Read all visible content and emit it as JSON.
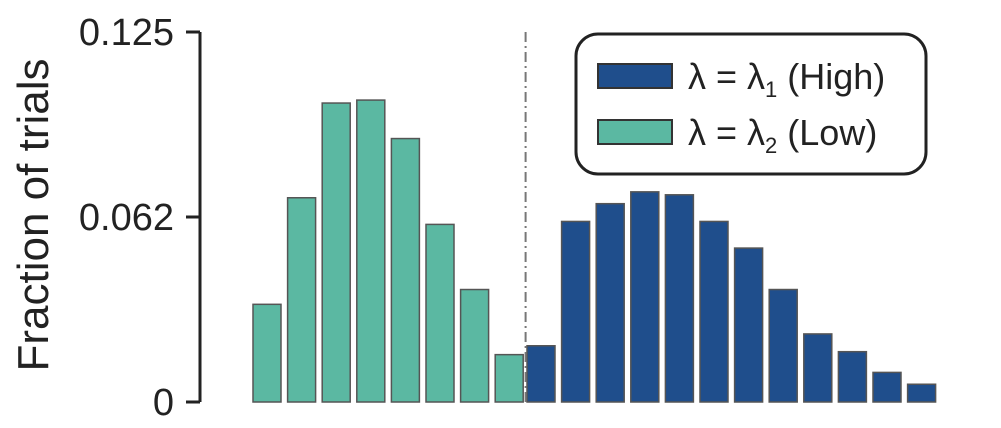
{
  "chart_data": {
    "type": "bar",
    "ylabel": "Fraction of trials",
    "ylim": [
      0,
      0.125
    ],
    "yticks": [
      {
        "value": 0,
        "label": "0"
      },
      {
        "value": 0.0625,
        "label": "0.062"
      },
      {
        "value": 0.125,
        "label": "0.125"
      }
    ],
    "threshold_line": {
      "style": "dash-dot",
      "color": "#777777"
    },
    "legend": {
      "placement": "top-right"
    },
    "series": [
      {
        "key": "high",
        "name": "λ = λ",
        "name_subscript": "1",
        "name_suffix": " (High)",
        "color": "#1f4e8c",
        "values": [
          0.019,
          0.061,
          0.067,
          0.071,
          0.07,
          0.061,
          0.052,
          0.038,
          0.023,
          0.017,
          0.01,
          0.006
        ]
      },
      {
        "key": "low",
        "name": "λ = λ",
        "name_subscript": "2",
        "name_suffix": " (Low)",
        "color": "#5bb8a2",
        "values": [
          0.033,
          0.069,
          0.101,
          0.102,
          0.089,
          0.06,
          0.038,
          0.016
        ]
      }
    ]
  }
}
